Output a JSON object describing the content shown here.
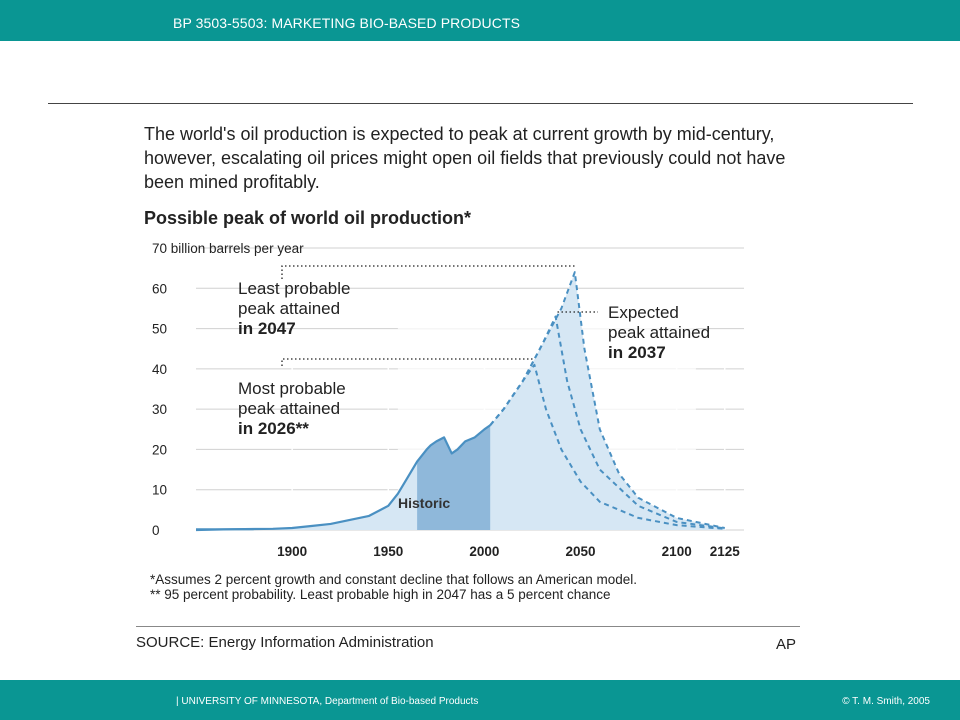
{
  "header": {
    "title": "BP 3503-5503: MARKETING BIO-BASED PRODUCTS"
  },
  "footer": {
    "left": "| UNIVERSITY OF MINNESOTA, Department of Bio-based Products",
    "right": "© T. M. Smith, 2005"
  },
  "figure": {
    "headline": "The world's oil production is expected to peak at current growth by mid-century, however, escalating oil prices might open oil fields that previously could not have been mined profitably.",
    "subhead": "Possible peak of world oil production*",
    "footnote1": "*Assumes 2 percent growth and constant decline that follows an American model.",
    "footnote2": "** 95 percent probability. Least probable high in 2047 has a 5 percent chance",
    "source": "SOURCE: Energy Information Administration",
    "credit": "AP"
  },
  "chart_data": {
    "type": "area",
    "ylabel": "billion barrels per year",
    "ylim": [
      0,
      70
    ],
    "yticks": [
      0,
      10,
      20,
      30,
      40,
      50,
      60,
      70
    ],
    "ytick_labels": [
      "0",
      "10",
      "20",
      "30",
      "40",
      "50",
      "60",
      "70 billion barrels per year"
    ],
    "xticks": [
      1900,
      1950,
      2000,
      2050,
      2100,
      2125
    ],
    "grid": true,
    "series": [
      {
        "name": "Historic",
        "x": [
          1850,
          1870,
          1890,
          1900,
          1910,
          1920,
          1930,
          1940,
          1950,
          1955,
          1960,
          1965,
          1970,
          1972,
          1975,
          1979,
          1983,
          1986,
          1990,
          1995,
          2000,
          2003
        ],
        "y": [
          0,
          0.2,
          0.3,
          0.5,
          1,
          1.5,
          2.5,
          3.5,
          6,
          9,
          13,
          17,
          20,
          21,
          22,
          23,
          19,
          20,
          22,
          23,
          25,
          26
        ]
      },
      {
        "name": "Most probable peak attained in 2026**",
        "x": [
          2003,
          2010,
          2020,
          2026,
          2032,
          2040,
          2050,
          2060,
          2080,
          2100,
          2125
        ],
        "y": [
          26,
          30,
          37,
          41,
          30,
          20,
          12,
          7,
          3,
          1.2,
          0.3
        ]
      },
      {
        "name": "Expected peak attained in 2037",
        "x": [
          2003,
          2010,
          2020,
          2030,
          2037,
          2043,
          2050,
          2060,
          2080,
          2100,
          2125
        ],
        "y": [
          26,
          30,
          37,
          46,
          53,
          37,
          25,
          15,
          6,
          2,
          0.4
        ]
      },
      {
        "name": "Least probable peak attained in 2047",
        "x": [
          2003,
          2010,
          2020,
          2030,
          2040,
          2047,
          2052,
          2060,
          2070,
          2080,
          2100,
          2125
        ],
        "y": [
          26,
          30,
          37,
          46,
          55,
          64,
          45,
          25,
          14,
          8,
          3,
          0.5
        ]
      }
    ],
    "annotations": [
      {
        "text": "Least probable peak attained in 2047",
        "lines": [
          "Least probable",
          "peak attained",
          "in 2047"
        ]
      },
      {
        "text": "Most probable peak attained in 2026**",
        "lines": [
          "Most probable",
          "peak attained",
          "in 2026**"
        ]
      },
      {
        "text": "Expected peak attained in 2037",
        "lines": [
          "Expected",
          "peak attained",
          "in 2037"
        ]
      },
      {
        "text": "Historic",
        "lines": [
          "Historic"
        ]
      }
    ],
    "colors": {
      "line": "#4a90c2",
      "fill_light": "#d6e7f4",
      "fill_dark": "#8fb8da",
      "grid": "#d0d0d0"
    }
  }
}
